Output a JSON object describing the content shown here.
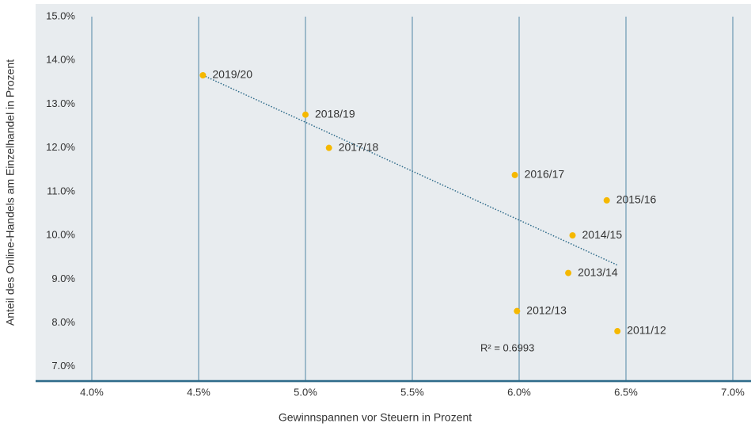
{
  "chart_data": {
    "type": "scatter",
    "x_label": "Gewinnspannen vor Steuern in Prozent",
    "y_label": "Anteil des Online-Handels am Einzelhandel in Prozent",
    "x": [
      4.52,
      5.0,
      5.11,
      5.98,
      6.41,
      6.25,
      6.23,
      5.99,
      6.46
    ],
    "values": [
      13.66,
      12.76,
      12.0,
      11.38,
      10.8,
      10.0,
      9.14,
      8.27,
      7.81
    ],
    "labels": [
      "2019/20",
      "2018/19",
      "2017/18",
      "2016/17",
      "2015/16",
      "2014/15",
      "2013/14",
      "2012/13",
      "2011/12"
    ],
    "color": "#f5b800",
    "trendline": {
      "x": [
        4.52,
        6.46
      ],
      "values": [
        13.66,
        9.32
      ],
      "color": "#2e6b8a"
    },
    "annotation": "R² = 0.6993",
    "xlim": [
      4,
      7
    ],
    "ylim": [
      6.67,
      15.0
    ],
    "xticks": [
      {
        "value": 4,
        "label": "4.0%"
      },
      {
        "value": 4.5,
        "label": "4.5%"
      },
      {
        "value": 5,
        "label": "5.0%"
      },
      {
        "value": 5.5,
        "label": "5.5%"
      },
      {
        "value": 6,
        "label": "6.0%"
      },
      {
        "value": 6.5,
        "label": "6.5%"
      },
      {
        "value": 7,
        "label": "7.0%"
      }
    ],
    "yticks": [
      {
        "value": 7,
        "label": "7.0%"
      },
      {
        "value": 8,
        "label": "8.0%"
      },
      {
        "value": 9,
        "label": "9.0%"
      },
      {
        "value": 10,
        "label": "10.0%"
      },
      {
        "value": 11,
        "label": "11.0%"
      },
      {
        "value": 12,
        "label": "12.0%"
      },
      {
        "value": 13,
        "label": "13.0%"
      },
      {
        "value": 14,
        "label": "14.0%"
      },
      {
        "value": 15,
        "label": "15.0%"
      }
    ],
    "grid": "x"
  }
}
